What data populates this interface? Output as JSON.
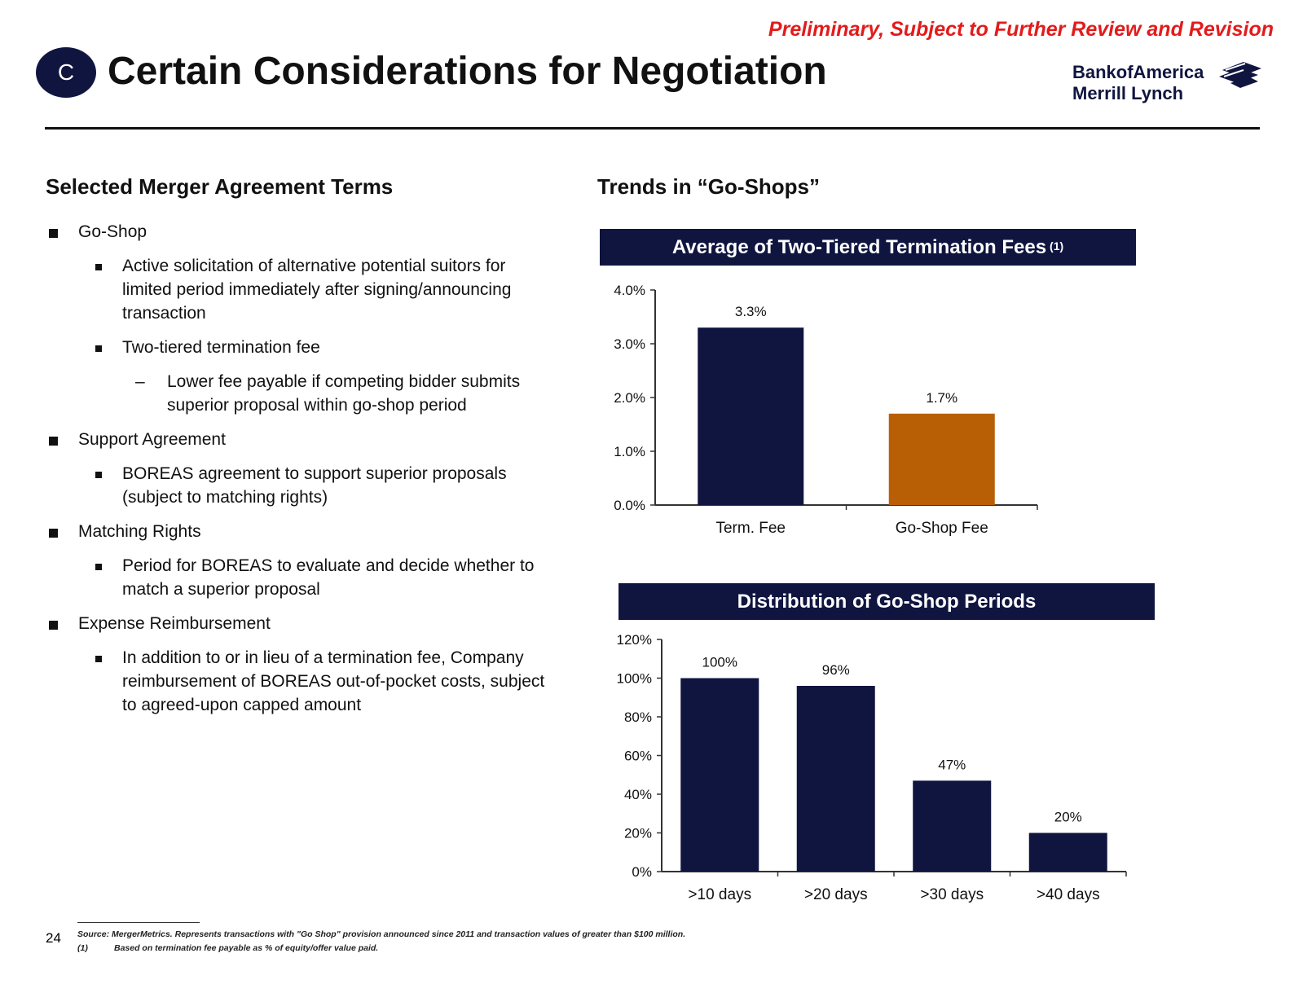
{
  "header": {
    "preliminary_note": "Preliminary, Subject to Further Review and Revision",
    "section_badge": "C",
    "title": "Certain Considerations for Negotiation",
    "logo_line1": "BankofAmerica",
    "logo_line2": "Merrill Lynch"
  },
  "left": {
    "heading": "Selected Merger Agreement Terms",
    "items": [
      {
        "level": 1,
        "text": "Go-Shop"
      },
      {
        "level": 2,
        "text": "Active solicitation of alternative potential suitors for limited period immediately after signing/announcing transaction"
      },
      {
        "level": 2,
        "text": "Two-tiered termination fee"
      },
      {
        "level": 3,
        "text": "Lower fee payable if competing bidder submits superior proposal within go-shop period"
      },
      {
        "level": 1,
        "text": "Support Agreement"
      },
      {
        "level": 2,
        "text": "BOREAS agreement to support superior proposals (subject to matching rights)"
      },
      {
        "level": 1,
        "text": "Matching Rights"
      },
      {
        "level": 2,
        "text": "Period for BOREAS to evaluate and decide whether to match a superior proposal"
      },
      {
        "level": 1,
        "text": "Expense Reimbursement"
      },
      {
        "level": 2,
        "text": "In addition to or in lieu of a termination fee, Company reimbursement of BOREAS out-of-pocket costs, subject to agreed-upon capped amount"
      }
    ]
  },
  "right": {
    "heading": "Trends in “Go-Shops”"
  },
  "chart_data": [
    {
      "type": "bar",
      "title": "Average of Two-Tiered Termination Fees",
      "title_footnote": "(1)",
      "categories": [
        "Term. Fee",
        "Go-Shop Fee"
      ],
      "values": [
        3.3,
        1.7
      ],
      "value_labels": [
        "3.3%",
        "1.7%"
      ],
      "bar_colors": [
        "#101540",
        "#b85f06"
      ],
      "yticks": [
        "0.0%",
        "1.0%",
        "2.0%",
        "3.0%",
        "4.0%"
      ],
      "ylim": [
        0,
        4
      ],
      "grid": false
    },
    {
      "type": "bar",
      "title": "Distribution of Go-Shop Periods",
      "categories": [
        ">10 days",
        ">20 days",
        ">30 days",
        ">40 days"
      ],
      "values": [
        100,
        96,
        47,
        20
      ],
      "value_labels": [
        "100%",
        "96%",
        "47%",
        "20%"
      ],
      "bar_colors": [
        "#101540",
        "#101540",
        "#101540",
        "#101540"
      ],
      "yticks": [
        "0%",
        "20%",
        "40%",
        "60%",
        "80%",
        "100%",
        "120%"
      ],
      "ylim": [
        0,
        120
      ],
      "grid": false
    }
  ],
  "footer": {
    "page_number": "24",
    "source_note": "Source: MergerMetrics. Represents transactions with \"Go Shop\" provision announced since 2011 and transaction values of greater than $100 million.",
    "footnote_marker": "(1)",
    "footnote_text": "Based on termination fee payable as % of equity/offer value paid."
  },
  "colors": {
    "navy": "#101540",
    "orange": "#b85f06",
    "red": "#e31b1b"
  }
}
